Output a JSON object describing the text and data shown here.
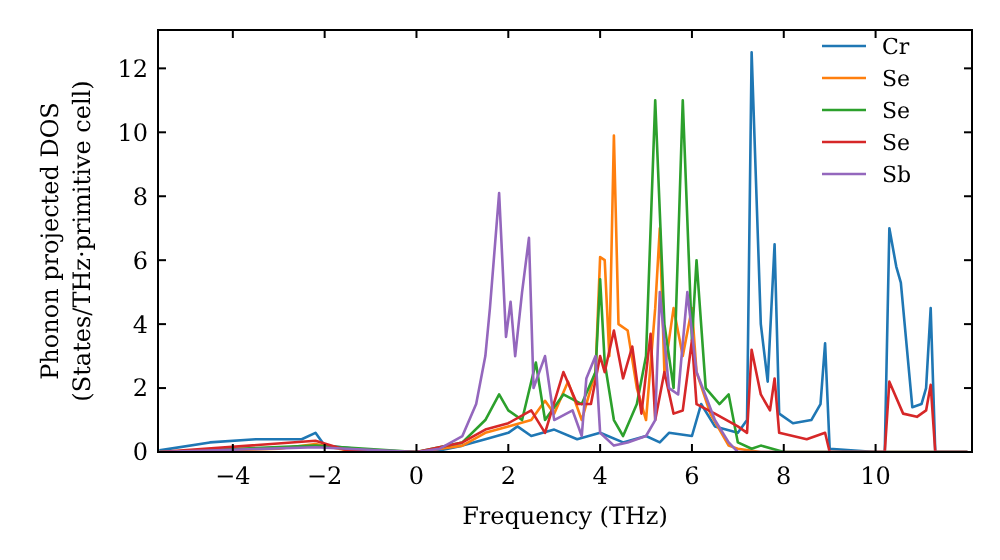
{
  "chart_data": {
    "type": "line",
    "xlabel": "Frequency (THz)",
    "ylabel": "Phonon projected DOS\n(States/THz·primitive cell)",
    "xlim": [
      -5.63,
      12.1
    ],
    "ylim": [
      0,
      13.2
    ],
    "xticks": [
      -4,
      -2,
      0,
      2,
      4,
      6,
      8,
      10
    ],
    "yticks": [
      0,
      2,
      4,
      6,
      8,
      10,
      12
    ],
    "grid": false,
    "legend": "top right",
    "marker": "none",
    "line_style": "solid",
    "series": [
      {
        "name": "Cr",
        "color": "#1f77b4",
        "x": [
          -5.6,
          -4.5,
          -3.5,
          -2.5,
          -2.2,
          -2,
          -1,
          0,
          0.5,
          1,
          1.5,
          2,
          2.2,
          2.5,
          3,
          3.5,
          4,
          4.5,
          5,
          5.3,
          5.5,
          6,
          6.2,
          6.5,
          7,
          7.2,
          7.3,
          7.5,
          7.65,
          7.8,
          7.9,
          8.2,
          8.6,
          8.8,
          8.9,
          9.0,
          10,
          10.2,
          10.3,
          10.45,
          10.55,
          10.8,
          11,
          11.1,
          11.2,
          11.3,
          12
        ],
        "values": [
          0.05,
          0.3,
          0.4,
          0.4,
          0.6,
          0.2,
          0.05,
          0,
          0.05,
          0.2,
          0.4,
          0.6,
          0.8,
          0.5,
          0.7,
          0.4,
          0.6,
          0.3,
          0.5,
          0.3,
          0.6,
          0.5,
          1.5,
          0.8,
          0.6,
          1.0,
          12.5,
          4,
          2.2,
          6.5,
          1.2,
          0.9,
          1.0,
          1.5,
          3.4,
          0.1,
          0,
          0,
          7.0,
          5.8,
          5.3,
          1.4,
          1.5,
          2,
          4.5,
          0,
          0
        ]
      },
      {
        "name": "Se",
        "color": "#ff7f0e",
        "x": [
          -5.6,
          -3,
          -2.2,
          -1.5,
          0,
          1,
          1.5,
          2,
          2.5,
          2.8,
          3,
          3.3,
          3.6,
          3.9,
          4,
          4.1,
          4.2,
          4.3,
          4.4,
          4.6,
          4.8,
          5,
          5.2,
          5.3,
          5.4,
          5.6,
          5.8,
          6.0,
          6.1,
          6.4,
          6.8,
          7,
          7.5,
          12
        ],
        "values": [
          0,
          0.1,
          0.25,
          0.05,
          0,
          0.2,
          0.6,
          0.8,
          1.0,
          1.6,
          1.2,
          2.2,
          1.0,
          2.5,
          6.1,
          6.0,
          3.0,
          9.9,
          4,
          3.8,
          2.0,
          1.0,
          4.5,
          7.0,
          2.5,
          4.5,
          3.0,
          4.5,
          2.5,
          1.2,
          0.2,
          0.1,
          0,
          0
        ]
      },
      {
        "name": "Se",
        "color": "#2ca02c",
        "x": [
          -5.6,
          -2.2,
          0,
          1,
          1.5,
          1.8,
          2,
          2.3,
          2.6,
          2.8,
          3.2,
          3.6,
          3.9,
          4.0,
          4.1,
          4.3,
          4.5,
          4.8,
          5.0,
          5.2,
          5.4,
          5.6,
          5.8,
          6.0,
          6.1,
          6.3,
          6.6,
          6.8,
          7.0,
          7.3,
          7.5,
          8,
          10,
          12
        ],
        "values": [
          0,
          0.2,
          0,
          0.3,
          1.0,
          1.8,
          1.3,
          1.0,
          2.8,
          1.0,
          1.8,
          1.5,
          2.5,
          5.4,
          2.8,
          1.0,
          0.5,
          1.5,
          3.0,
          11.0,
          4,
          2.0,
          11.0,
          3.5,
          6.0,
          2.0,
          1.5,
          1.8,
          0.3,
          0.1,
          0.2,
          0,
          0,
          0
        ]
      },
      {
        "name": "Se",
        "color": "#d62728",
        "x": [
          -5.6,
          -2.2,
          -1.5,
          0,
          1,
          1.5,
          2,
          2.5,
          2.8,
          3.2,
          3.5,
          3.8,
          4.0,
          4.1,
          4.3,
          4.5,
          4.7,
          4.9,
          5.1,
          5.2,
          5.4,
          5.6,
          5.8,
          6.0,
          6.1,
          6.5,
          7,
          7.2,
          7.3,
          7.5,
          7.7,
          7.8,
          7.9,
          8.5,
          8.9,
          9.0,
          10.2,
          10.3,
          10.6,
          10.9,
          11.1,
          11.2,
          11.3,
          12
        ],
        "values": [
          0,
          0.35,
          0.05,
          0,
          0.3,
          0.7,
          0.9,
          1.3,
          0.6,
          2.5,
          1.5,
          1.5,
          3.0,
          2.5,
          3.8,
          2.3,
          3.3,
          1.2,
          3.7,
          1.0,
          2.5,
          1.2,
          1.3,
          3.5,
          1.5,
          1.2,
          0.8,
          0.6,
          3.2,
          1.8,
          1.3,
          2.3,
          0.6,
          0.4,
          0.6,
          0,
          0,
          2.2,
          1.2,
          1.1,
          1.3,
          2.1,
          0,
          0
        ]
      },
      {
        "name": "Sb",
        "color": "#9467bd",
        "x": [
          -5.6,
          -2.2,
          0,
          0.5,
          1,
          1.3,
          1.5,
          1.6,
          1.8,
          1.95,
          2.05,
          2.15,
          2.3,
          2.45,
          2.55,
          2.8,
          3.0,
          3.4,
          3.6,
          3.7,
          3.9,
          4.0,
          4.3,
          4.6,
          5.0,
          5.2,
          5.3,
          5.5,
          5.7,
          5.9,
          6.1,
          6.5,
          6.8,
          7,
          12
        ],
        "values": [
          0,
          0.15,
          0,
          0.1,
          0.5,
          1.5,
          3.0,
          4.5,
          8.1,
          3.6,
          4.7,
          3.0,
          5.0,
          6.7,
          2.0,
          3.0,
          1.0,
          1.3,
          0.5,
          2.3,
          3.0,
          0.6,
          0.2,
          0.3,
          0.5,
          1.0,
          5.0,
          2.0,
          1.8,
          5.0,
          2.5,
          1.0,
          0.3,
          0,
          0
        ]
      }
    ]
  }
}
